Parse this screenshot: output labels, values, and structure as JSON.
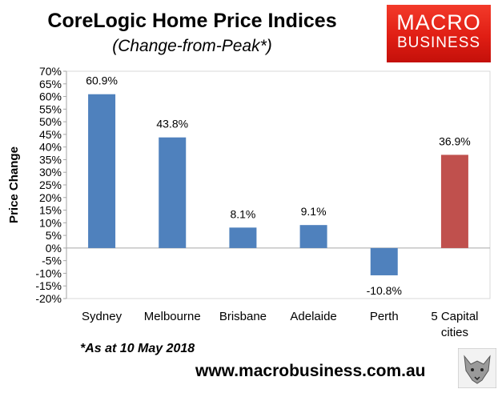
{
  "header": {
    "title": "CoreLogic Home Price Indices",
    "subtitle": "(Change-from-Peak*)"
  },
  "logo": {
    "line1": "MACRO",
    "line2": "BUSINESS",
    "icon": "wolf-head-icon"
  },
  "footer": {
    "footnote": "*As at 10 May 2018",
    "website": "www.macrobusiness.com.au"
  },
  "colors": {
    "bar": "#4f81bd",
    "highlight_bar": "#c0504d",
    "grid": "#d9d9d9",
    "axis": "#a6a6a6"
  },
  "chart_data": {
    "type": "bar",
    "title": "CoreLogic Home Price Indices",
    "subtitle": "(Change-from-Peak*)",
    "xlabel": "",
    "ylabel": "Price Change",
    "categories": [
      [
        "Sydney"
      ],
      [
        "Melbourne"
      ],
      [
        "Brisbane"
      ],
      [
        "Adelaide"
      ],
      [
        "Perth"
      ],
      [
        "5 Capital",
        "cities"
      ]
    ],
    "values": [
      60.9,
      43.8,
      8.1,
      9.1,
      -10.8,
      36.9
    ],
    "data_labels": [
      "60.9%",
      "43.8%",
      "8.1%",
      "9.1%",
      "-10.8%",
      "36.9%"
    ],
    "highlight_index": 5,
    "ylim": [
      -20,
      70
    ],
    "ytick_step": 5,
    "ytick_suffix": "%",
    "grid": false,
    "legend": "none"
  }
}
